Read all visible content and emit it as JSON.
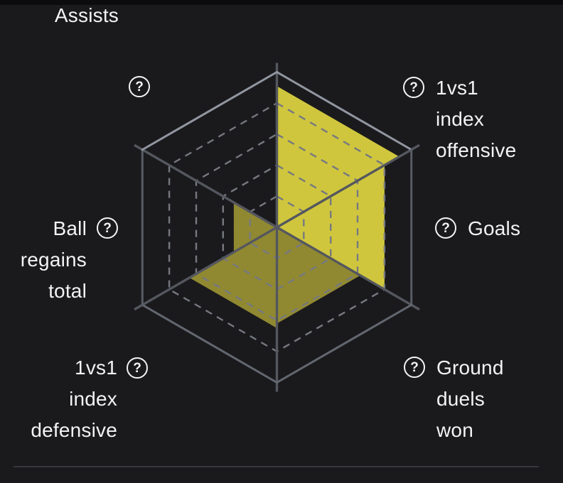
{
  "chart_data": {
    "type": "radar",
    "variant": "hexagon-sector-fill",
    "title": "",
    "axes": [
      {
        "label": "Assists",
        "value": 0.0,
        "fill": "none"
      },
      {
        "label": "1vs1 index offensive",
        "value": 0.91,
        "fill": "#cfc63d"
      },
      {
        "label": "Goals",
        "value": 0.8,
        "fill": "#cfc63d"
      },
      {
        "label": "Ground duels won",
        "value": 0.62,
        "fill": "#918931"
      },
      {
        "label": "1vs1 index defensive",
        "value": 0.65,
        "fill": "#918931"
      },
      {
        "label": "Ball regains total",
        "value": 0.32,
        "fill": "#918931"
      }
    ],
    "scale": {
      "min": 0,
      "max": 1,
      "gridlines": [
        0.2,
        0.4,
        0.6,
        0.8
      ]
    },
    "grid": {
      "dash_color": "#767980",
      "spoke_color": "#54575e",
      "rim_colors": {
        "top_right": "#9196a0",
        "right": "#585c64",
        "bottom_right": "#63676f",
        "bottom_left": "#63676f",
        "left": "#585c64",
        "top_left": "#9196a0"
      }
    },
    "background": "#1a1a1d",
    "legend": "none"
  },
  "labels": {
    "assists": {
      "lines": [
        "Assists"
      ]
    },
    "offensive": {
      "lines": [
        "1vs1",
        "index",
        "offensive"
      ]
    },
    "goals": {
      "lines": [
        "Goals"
      ]
    },
    "ground": {
      "lines": [
        "Ground",
        "duels",
        "won"
      ]
    },
    "defensive": {
      "lines": [
        "1vs1",
        "index",
        "defensive"
      ]
    },
    "ball": {
      "lines": [
        "Ball",
        "regains",
        "total"
      ]
    }
  },
  "help_icon_glyph": "?"
}
